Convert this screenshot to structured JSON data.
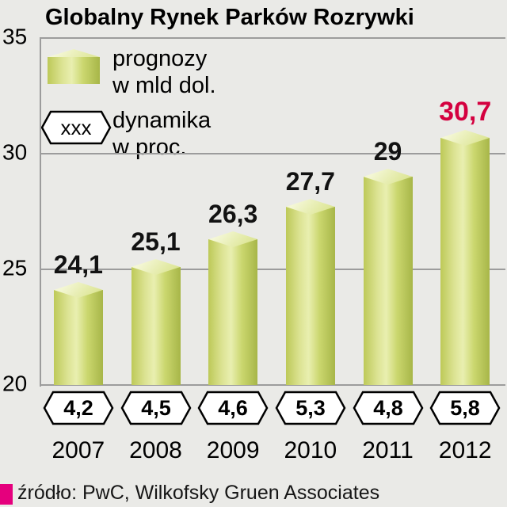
{
  "title": "Globalny Rynek Parków Rozrywki",
  "legend": {
    "series1_line1": "prognozy",
    "series1_line2": "w mld dol.",
    "hex_symbol": "xxx",
    "series2_line1": "dynamika",
    "series2_line2": "w proc."
  },
  "icons": {
    "bar_legend": "3d-bar-cube-icon",
    "dynamics_legend": "hexagon-outline-icon"
  },
  "source": "źródło: PwC, Wilkofsky Gruen Associates",
  "chart_data": {
    "type": "bar",
    "title": "Globalny Rynek Parków Rozrywki",
    "categories": [
      "2007",
      "2008",
      "2009",
      "2010",
      "2011",
      "2012"
    ],
    "series": [
      {
        "name": "prognozy w mld dol.",
        "values": [
          24.1,
          25.1,
          26.3,
          27.7,
          29,
          30.7
        ]
      },
      {
        "name": "dynamika w proc.",
        "values": [
          4.2,
          4.5,
          4.6,
          5.3,
          4.8,
          5.8
        ]
      }
    ],
    "value_labels": [
      "24,1",
      "25,1",
      "26,3",
      "27,7",
      "29",
      "30,7"
    ],
    "dynamics_labels": [
      "4,2",
      "4,5",
      "4,6",
      "5,3",
      "4,8",
      "5,8"
    ],
    "ylim": [
      20,
      35
    ],
    "yticks": [
      20,
      25,
      30,
      35
    ],
    "grid": true,
    "legend_position": "top-left",
    "highlight_index": 5,
    "colors": {
      "bar_front": "#cbd76f",
      "bar_light": "#e9efb0",
      "bar_dark": "#a7b648",
      "bar_cap": "#eef2c6",
      "value_text": "#121212",
      "value_highlight": "#d4003f",
      "gridline": "#9c9c9c",
      "hex_fill": "#ffffff",
      "hex_stroke": "#000000",
      "source_square": "#e5007d",
      "background": "#eaeae7"
    }
  }
}
